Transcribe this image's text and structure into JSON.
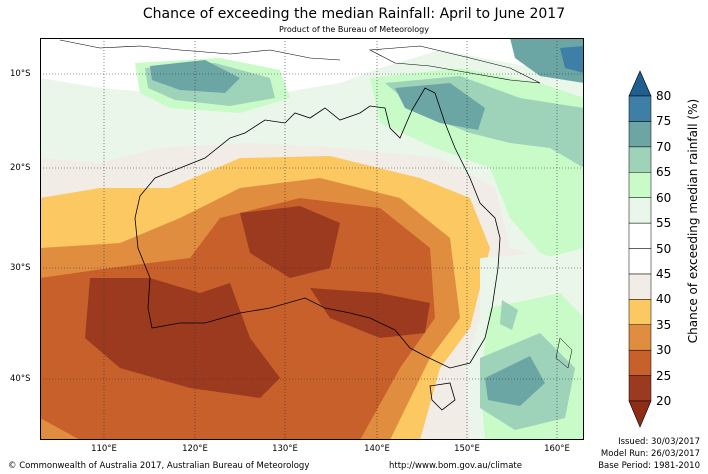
{
  "title": "Chance of exceeding the median Rainfall: April to June 2017",
  "subtitle": "Product of the Bureau of Meteorology",
  "lat_labels": [
    "10°S",
    "20°S",
    "30°S",
    "40°S"
  ],
  "lon_labels": [
    "110°E",
    "120°E",
    "130°E",
    "140°E",
    "150°E",
    "160°E"
  ],
  "colorbar": {
    "label": "Chance of exceeding median rainfall (%)",
    "ticks": [
      "20",
      "25",
      "30",
      "35",
      "40",
      "45",
      "50",
      "55",
      "60",
      "65",
      "70",
      "75",
      "80"
    ],
    "colors": [
      "#9c3a1f",
      "#c8602b",
      "#e08d3f",
      "#fcc862",
      "#f2ece6",
      "#ffffff",
      "#ffffff",
      "#e9f6e9",
      "#c9fbc9",
      "#9ed3ba",
      "#6ba6a4",
      "#3d7fa6"
    ],
    "lowest_color": "#8f2c18",
    "highest_color": "#1f5f8f"
  },
  "footer": {
    "copyright": "© Commonwealth of Australia 2017, Australian Bureau of Meteorology",
    "url": "http://www.bom.gov.au/climate",
    "issued": "Issued: 30/03/2017",
    "model_run": "Model Run: 26/03/2017",
    "base_period": "Base Period: 1981-2010"
  }
}
